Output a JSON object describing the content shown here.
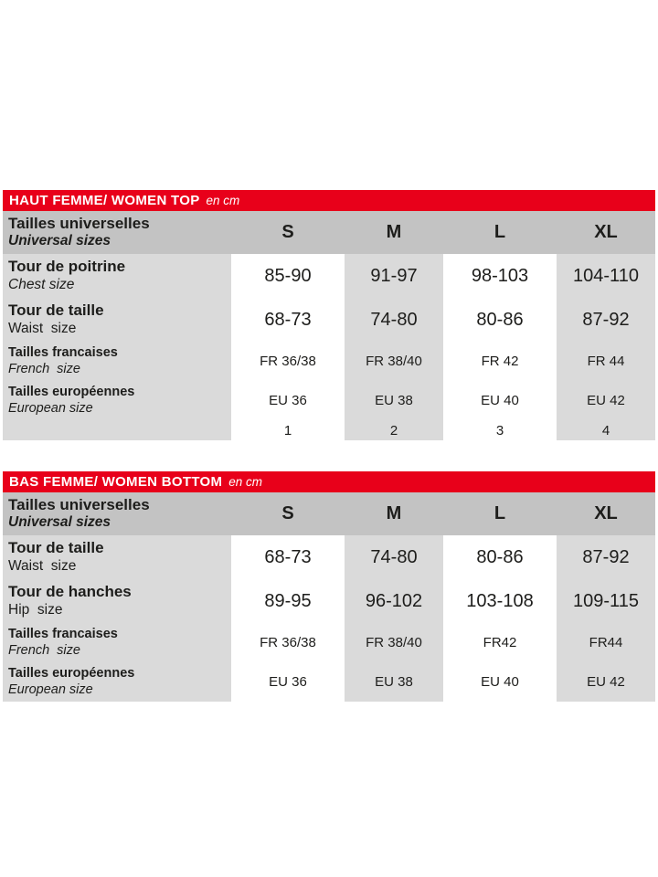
{
  "colors": {
    "red": "#e8001a",
    "header_gray": "#c3c3c3",
    "cell_gray": "#dadada",
    "text": "#1d1d1b"
  },
  "tables": [
    {
      "title": "HAUT FEMME/ WOMEN TOP",
      "unit": "en cm",
      "size_header": {
        "label_fr": "Tailles universelles",
        "label_en": "Universal sizes",
        "columns": [
          "S",
          "M",
          "L",
          "XL"
        ]
      },
      "rows": [
        {
          "label_fr": "Tour de poitrine",
          "label_en": "Chest size",
          "en_italic": true,
          "size": "lg",
          "values": [
            "85-90",
            "91-97",
            "98-103",
            "104-110"
          ]
        },
        {
          "label_fr": "Tour de taille",
          "label_en": "Waist  size",
          "en_italic": false,
          "size": "lg",
          "values": [
            "68-73",
            "74-80",
            "80-86",
            "87-92"
          ]
        },
        {
          "label_fr": "Tailles francaises",
          "label_en": "French  size",
          "en_italic": true,
          "size": "sm",
          "values": [
            "FR 36/38",
            "FR 38/40",
            "FR 42",
            "FR 44"
          ]
        },
        {
          "label_fr": "Tailles européennes",
          "label_en": "European size",
          "en_italic": true,
          "size": "sm",
          "values": [
            "EU 36",
            "EU 38",
            "EU 40",
            "EU 42"
          ]
        },
        {
          "label_fr": "",
          "label_en": "",
          "en_italic": false,
          "size": "num",
          "values": [
            "1",
            "2",
            "3",
            "4"
          ]
        }
      ]
    },
    {
      "title": "BAS FEMME/ WOMEN BOTTOM",
      "unit": "en cm",
      "size_header": {
        "label_fr": "Tailles universelles",
        "label_en": "Universal sizes",
        "columns": [
          "S",
          "M",
          "L",
          "XL"
        ]
      },
      "rows": [
        {
          "label_fr": "Tour de taille",
          "label_en": "Waist  size",
          "en_italic": false,
          "size": "lg",
          "values": [
            "68-73",
            "74-80",
            "80-86",
            "87-92"
          ]
        },
        {
          "label_fr": "Tour de hanches",
          "label_en": "Hip  size",
          "en_italic": false,
          "size": "lg",
          "values": [
            "89-95",
            "96-102",
            "103-108",
            "109-115"
          ]
        },
        {
          "label_fr": "Tailles francaises",
          "label_en": "French  size",
          "en_italic": true,
          "size": "sm",
          "values": [
            "FR 36/38",
            "FR 38/40",
            "FR42",
            "FR44"
          ]
        },
        {
          "label_fr": "Tailles européennes",
          "label_en": "European size",
          "en_italic": true,
          "size": "sm",
          "values": [
            "EU 36",
            "EU 38",
            "EU 40",
            "EU 42"
          ]
        }
      ]
    }
  ]
}
